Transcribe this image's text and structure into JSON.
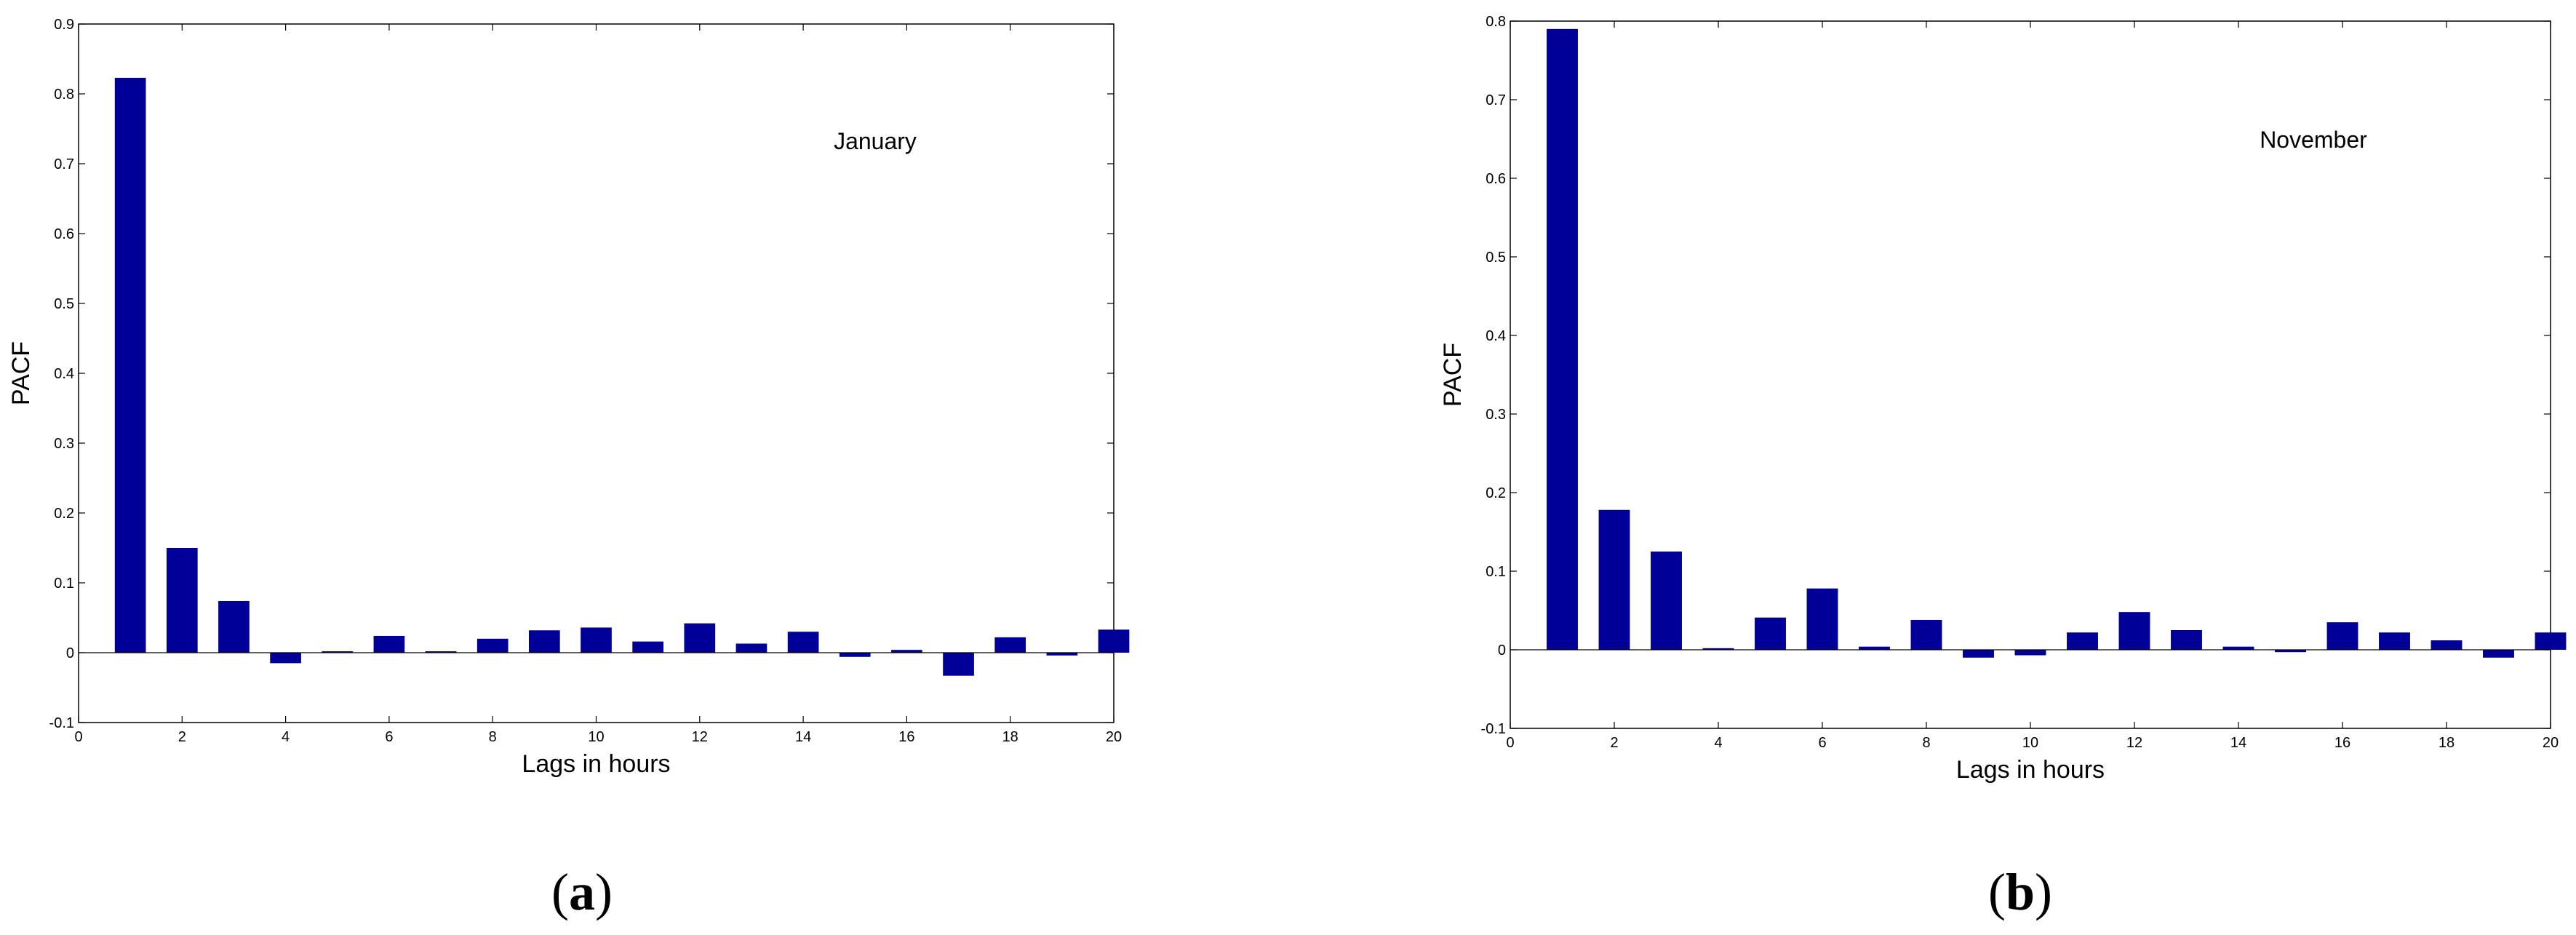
{
  "chart_data": [
    {
      "type": "bar",
      "panel_label": "a",
      "annotation": "January",
      "xlabel": "Lags in hours",
      "ylabel": "PACF",
      "xlim": [
        0,
        20
      ],
      "ylim": [
        -0.1,
        0.9
      ],
      "xticks": [
        "0",
        "2",
        "4",
        "6",
        "8",
        "10",
        "12",
        "14",
        "16",
        "18",
        "20"
      ],
      "yticks": [
        "-0.1",
        "0",
        "0.1",
        "0.2",
        "0.3",
        "0.4",
        "0.5",
        "0.6",
        "0.7",
        "0.8",
        "0.9"
      ],
      "bar_color": "#000099",
      "x": [
        1,
        2,
        3,
        4,
        5,
        6,
        7,
        8,
        9,
        10,
        11,
        12,
        13,
        14,
        15,
        16,
        17,
        18,
        19,
        20
      ],
      "values": [
        0.823,
        0.15,
        0.074,
        -0.015,
        0.002,
        0.024,
        0.002,
        0.02,
        0.032,
        0.036,
        0.016,
        0.042,
        0.013,
        0.03,
        -0.006,
        0.004,
        -0.033,
        0.022,
        -0.004,
        0.033
      ]
    },
    {
      "type": "bar",
      "panel_label": "b",
      "annotation": "November",
      "xlabel": "Lags in hours",
      "ylabel": "PACF",
      "xlim": [
        0,
        20
      ],
      "ylim": [
        -0.1,
        0.8
      ],
      "xticks": [
        "0",
        "2",
        "4",
        "6",
        "8",
        "10",
        "12",
        "14",
        "16",
        "18",
        "20"
      ],
      "yticks": [
        "-0.1",
        "0",
        "0.1",
        "0.2",
        "0.3",
        "0.4",
        "0.5",
        "0.6",
        "0.7",
        "0.8"
      ],
      "bar_color": "#000099",
      "x": [
        1,
        2,
        3,
        4,
        5,
        6,
        7,
        8,
        9,
        10,
        11,
        12,
        13,
        14,
        15,
        16,
        17,
        18,
        19,
        20
      ],
      "values": [
        0.79,
        0.178,
        0.125,
        0.002,
        0.041,
        0.078,
        0.004,
        0.038,
        -0.01,
        -0.007,
        0.022,
        0.048,
        0.025,
        0.004,
        -0.003,
        0.035,
        0.022,
        0.012,
        -0.01,
        0.022
      ]
    }
  ]
}
